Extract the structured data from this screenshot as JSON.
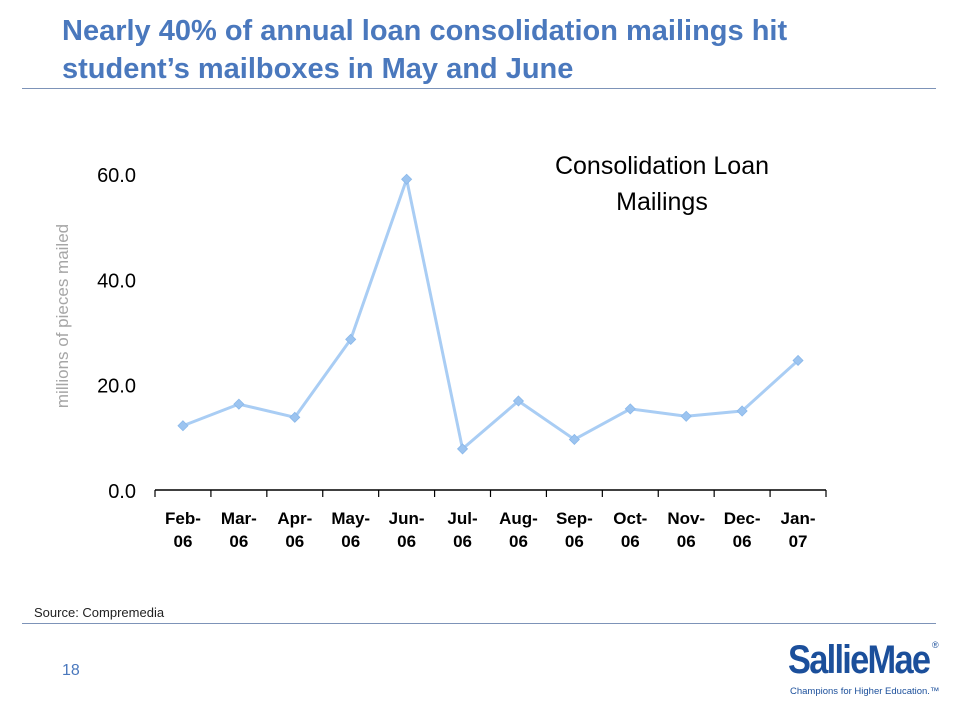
{
  "slide": {
    "headline": "Nearly 40% of annual loan consolidation mailings hit student’s mailboxes in May and June",
    "source": "Source: Compremedia",
    "page_number": "18"
  },
  "logo": {
    "wordmark": "SallieMae",
    "registered": "®",
    "tagline": "Champions for Higher Education.™"
  },
  "colors": {
    "headline": "#4a78bd",
    "series_line": "#a9cdf4",
    "series_marker": "#9cc4f0",
    "axis": "#000000",
    "ylabel": "#a6a6a6",
    "logo": "#1b4f9b"
  },
  "chart_data": {
    "type": "line",
    "title": "Consolidation Loan Mailings",
    "title_lines": [
      "Consolidation Loan",
      "Mailings"
    ],
    "ylabel": "millions of pieces mailed",
    "xlabel": "",
    "categories": [
      "Feb-06",
      "Mar-06",
      "Apr-06",
      "May-06",
      "Jun-06",
      "Jul-06",
      "Aug-06",
      "Sep-06",
      "Oct-06",
      "Nov-06",
      "Dec-06",
      "Jan-07"
    ],
    "category_lines": [
      [
        "Feb-",
        "06"
      ],
      [
        "Mar-",
        "06"
      ],
      [
        "Apr-",
        "06"
      ],
      [
        "May-",
        "06"
      ],
      [
        "Jun-",
        "06"
      ],
      [
        "Jul-",
        "06"
      ],
      [
        "Aug-",
        "06"
      ],
      [
        "Sep-",
        "06"
      ],
      [
        "Oct-",
        "06"
      ],
      [
        "Nov-",
        "06"
      ],
      [
        "Dec-",
        "06"
      ],
      [
        "Jan-",
        "07"
      ]
    ],
    "series": [
      {
        "values": [
          12.2,
          16.3,
          13.8,
          28.6,
          59.0,
          7.8,
          16.9,
          9.6,
          15.4,
          14.0,
          15.0,
          24.6
        ]
      }
    ],
    "ylim": [
      0,
      60
    ],
    "yticks": [
      0,
      20,
      40,
      60
    ],
    "ytick_labels": [
      "0.0",
      "20.0",
      "40.0",
      "60.0"
    ],
    "grid": false,
    "legend": "none"
  }
}
